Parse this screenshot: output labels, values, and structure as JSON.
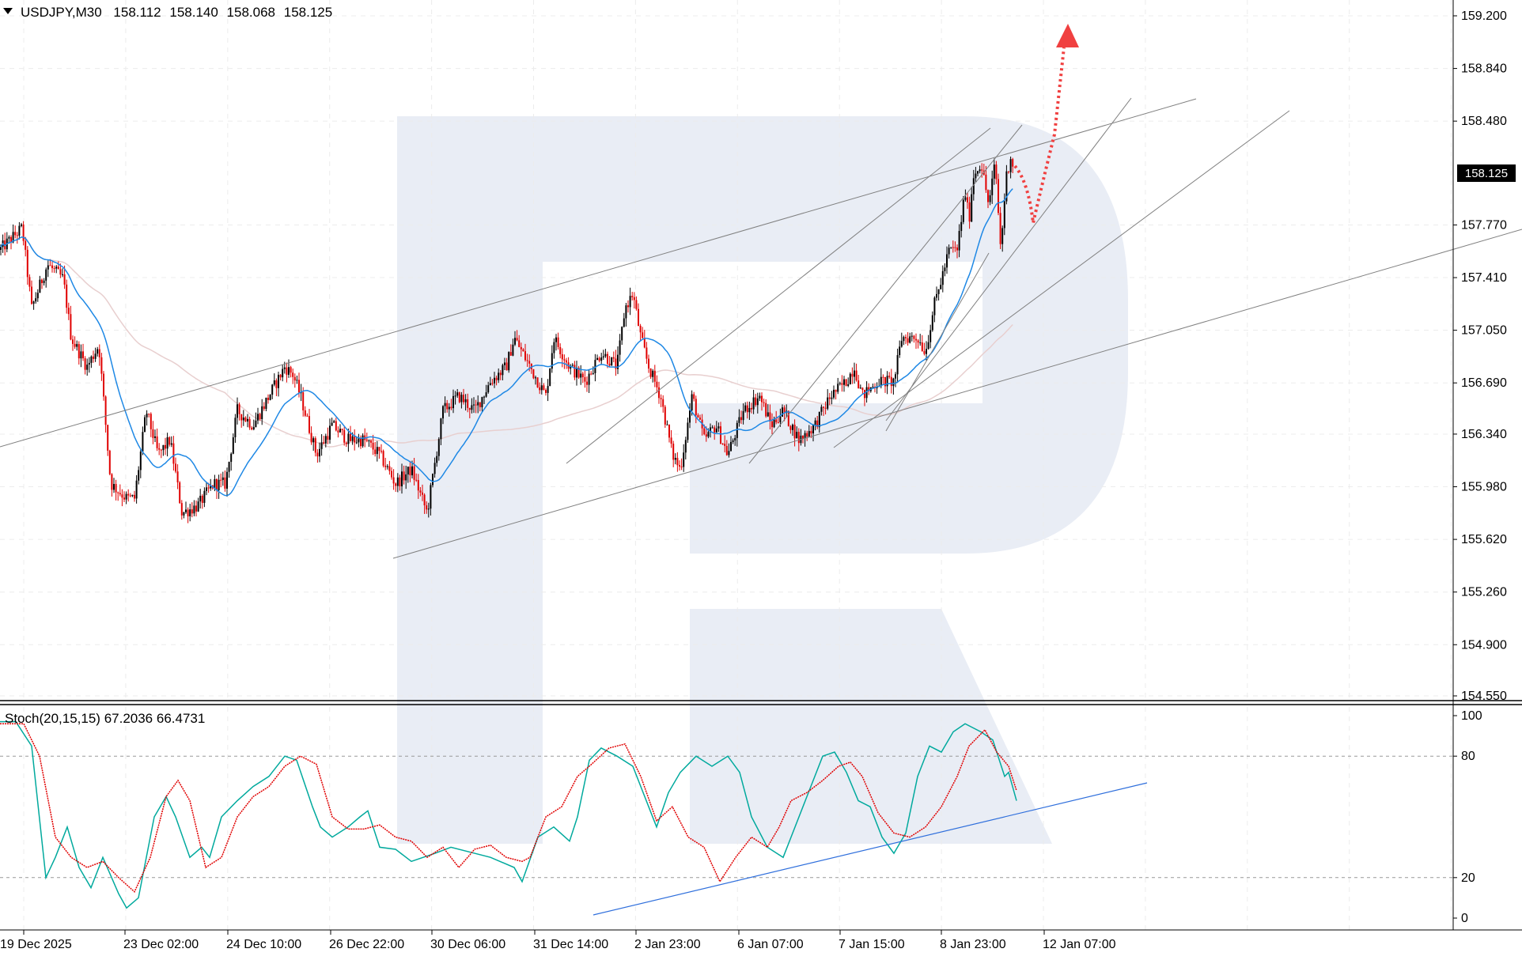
{
  "header": {
    "symbol": "USDJPY,M30",
    "open": "158.112",
    "high": "158.140",
    "low": "158.068",
    "close": "158.125"
  },
  "price_axis": {
    "current_price": "158.125",
    "ticks": [
      "159.200",
      "158.840",
      "158.480",
      "157.770",
      "157.410",
      "157.050",
      "156.690",
      "156.340",
      "155.980",
      "155.620",
      "155.260",
      "154.900",
      "154.550"
    ]
  },
  "stoch_panel": {
    "label": "Stoch(20,15,15) 67.2036 66.4731",
    "levels": [
      "100",
      "80",
      "20",
      "0"
    ]
  },
  "time_axis": {
    "ticks": [
      "19 Dec 2025",
      "23 Dec 02:00",
      "24 Dec 10:00",
      "26 Dec 22:00",
      "30 Dec 06:00",
      "31 Dec 14:00",
      "2 Jan 23:00",
      "6 Jan 07:00",
      "7 Jan 15:00",
      "8 Jan 23:00",
      "12 Jan 07:00"
    ]
  },
  "colors": {
    "bull_candle": "#000000",
    "bear_candle": "#e00000",
    "ma_fast": "#1e88e5",
    "ma_slow": "#e8cfcf",
    "stoch_main": "#00a99d",
    "stoch_signal": "#e00000",
    "trendline": "#808080",
    "stoch_trendline": "#2f6fdc",
    "forecast_arrow": "#f04040",
    "watermark": "#e9edf5"
  },
  "chart_data": {
    "type": "candlestick",
    "title": "USDJPY,M30",
    "ylim": [
      154.5,
      159.3
    ],
    "anchors": [
      [
        "19 Dec",
        157.6
      ],
      [
        "20 Dec",
        157.2
      ],
      [
        "22 Dec",
        156.9
      ],
      [
        "22 Dec b",
        155.9
      ],
      [
        "23 Dec 02:00",
        155.8
      ],
      [
        "23 Dec",
        156.4
      ],
      [
        "23 Dec b",
        155.7
      ],
      [
        "24 Dec 10:00",
        156.0
      ],
      [
        "24 Dec b",
        156.5
      ],
      [
        "25 Dec",
        156.7
      ],
      [
        "26 Dec",
        156.2
      ],
      [
        "26 Dec 22:00",
        156.4
      ],
      [
        "29 Dec",
        156.1
      ],
      [
        "30 Dec 06:00",
        155.9
      ],
      [
        "30 Dec",
        156.5
      ],
      [
        "31 Dec",
        156.9
      ],
      [
        "31 Dec 14:00",
        156.6
      ],
      [
        "1 Jan",
        157.0
      ],
      [
        "2 Jan",
        156.8
      ],
      [
        "2 Jan b",
        157.2
      ],
      [
        "2 Jan 23:00",
        156.8
      ],
      [
        "5 Jan",
        156.1
      ],
      [
        "6 Jan 07:00",
        156.6
      ],
      [
        "6 Jan",
        156.3
      ],
      [
        "6 Jan b",
        156.7
      ],
      [
        "7 Jan",
        156.4
      ],
      [
        "7 Jan 15:00",
        156.8
      ],
      [
        "8 Jan",
        156.6
      ],
      [
        "8 Jan b",
        157.0
      ],
      [
        "8 Jan 23:00",
        157.7
      ],
      [
        "9 Jan",
        158.1
      ],
      [
        "9 Jan b",
        157.8
      ],
      [
        "12 Jan",
        158.2
      ],
      [
        "12 Jan 07:00",
        158.1
      ]
    ],
    "stochastic": {
      "main_value": 67.2036,
      "signal_value": 66.4731,
      "levels": [
        20,
        80
      ]
    }
  }
}
